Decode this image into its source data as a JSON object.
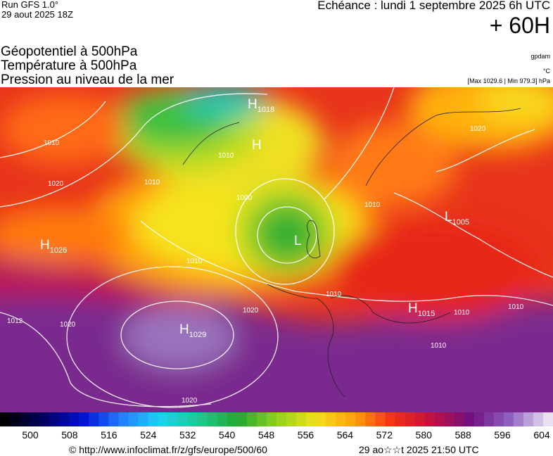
{
  "header": {
    "run": "Run GFS 1.0°",
    "date": "29 aout 2025 18Z",
    "echeance": "Echéance : lundi 1 septembre 2025 6h UTC",
    "lead": "+ 60H"
  },
  "titles": [
    "Géopotentiel à 500hPa",
    "Température à 500hPa",
    "Pression au niveau de la mer"
  ],
  "units": [
    "gpdam",
    "°C",
    "[Max 1029.6 | Min 979.3] hPa"
  ],
  "map": {
    "pressure_centers": [
      {
        "letter": "H",
        "value": "1018"
      },
      {
        "letter": "H",
        "value": ""
      },
      {
        "letter": "L",
        "value": "1005"
      },
      {
        "letter": "L",
        "value": ""
      },
      {
        "letter": "H",
        "value": "1026"
      },
      {
        "letter": "H",
        "value": "1029"
      },
      {
        "letter": "H",
        "value": "1015"
      }
    ],
    "isobar_labels": [
      "1012",
      "1020",
      "1020",
      "1020",
      "1010",
      "1020",
      "1010",
      "1010",
      "1010",
      "1000",
      "1010",
      "1010",
      "1010",
      "1010",
      "1010",
      "1020"
    ]
  },
  "colorbar": {
    "ticks": [
      500,
      508,
      516,
      524,
      532,
      540,
      548,
      556,
      564,
      572,
      580,
      588,
      596,
      604
    ]
  },
  "footer": {
    "source": "© http://www.infoclimat.fr/z/gfs/europe/500/60",
    "timestamp": "29 ao☆☆t 2025 21:50 UTC"
  }
}
